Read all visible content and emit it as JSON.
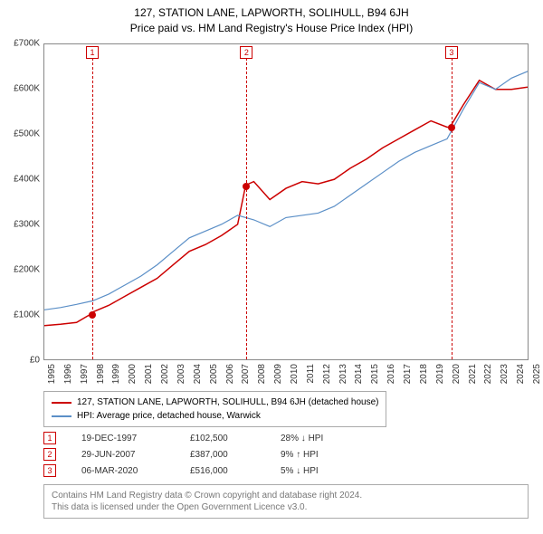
{
  "title": "127, STATION LANE, LAPWORTH, SOLIHULL, B94 6JH",
  "subtitle": "Price paid vs. HM Land Registry's House Price Index (HPI)",
  "chart": {
    "type": "line",
    "background_color": "#ffffff",
    "border_color": "#888888",
    "ylim": [
      0,
      700000
    ],
    "ytick_step": 100000,
    "ytick_labels": [
      "£0",
      "£100K",
      "£200K",
      "£300K",
      "£400K",
      "£500K",
      "£600K",
      "£700K"
    ],
    "xlim": [
      1995,
      2025
    ],
    "xtick_labels": [
      "1995",
      "1996",
      "1997",
      "1998",
      "1999",
      "2000",
      "2001",
      "2002",
      "2003",
      "2004",
      "2005",
      "2006",
      "2007",
      "2008",
      "2009",
      "2010",
      "2011",
      "2012",
      "2013",
      "2014",
      "2015",
      "2016",
      "2017",
      "2018",
      "2019",
      "2020",
      "2021",
      "2022",
      "2023",
      "2024",
      "2025"
    ],
    "series": [
      {
        "name": "127, STATION LANE, LAPWORTH, SOLIHULL, B94 6JH (detached house)",
        "color": "#cc0000",
        "line_width": 1.5,
        "points_year": [
          1995,
          1996,
          1997,
          1997.97,
          1998,
          1999,
          2000,
          2001,
          2002,
          2003,
          2004,
          2005,
          2006,
          2007,
          2007.5,
          2008,
          2009,
          2010,
          2011,
          2012,
          2013,
          2014,
          2015,
          2016,
          2017,
          2018,
          2019,
          2020,
          2020.18,
          2021,
          2022,
          2023,
          2024,
          2025
        ],
        "points_value": [
          75000,
          78000,
          82000,
          102500,
          105000,
          120000,
          140000,
          160000,
          180000,
          210000,
          240000,
          255000,
          275000,
          300000,
          387000,
          395000,
          355000,
          380000,
          395000,
          390000,
          400000,
          425000,
          445000,
          470000,
          490000,
          510000,
          530000,
          516000,
          516000,
          565000,
          620000,
          600000,
          600000,
          605000
        ]
      },
      {
        "name": "HPI: Average price, detached house, Warwick",
        "color": "#5b8fc7",
        "line_width": 1.2,
        "points_year": [
          1995,
          1996,
          1997,
          1998,
          1999,
          2000,
          2001,
          2002,
          2003,
          2004,
          2005,
          2006,
          2007,
          2008,
          2009,
          2010,
          2011,
          2012,
          2013,
          2014,
          2015,
          2016,
          2017,
          2018,
          2019,
          2020,
          2021,
          2022,
          2023,
          2024,
          2025
        ],
        "points_value": [
          110000,
          115000,
          122000,
          130000,
          145000,
          165000,
          185000,
          210000,
          240000,
          270000,
          285000,
          300000,
          320000,
          310000,
          295000,
          315000,
          320000,
          325000,
          340000,
          365000,
          390000,
          415000,
          440000,
          460000,
          475000,
          490000,
          555000,
          615000,
          600000,
          625000,
          640000
        ]
      }
    ],
    "events": [
      {
        "n": "1",
        "date": "19-DEC-1997",
        "year": 1997.97,
        "price": "£102,500",
        "delta": "28% ↓ HPI",
        "value": 102500
      },
      {
        "n": "2",
        "date": "29-JUN-2007",
        "year": 2007.5,
        "price": "£387,000",
        "delta": "9% ↑ HPI",
        "value": 387000
      },
      {
        "n": "3",
        "date": "06-MAR-2020",
        "year": 2020.18,
        "price": "£516,000",
        "delta": "5% ↓ HPI",
        "value": 516000
      }
    ]
  },
  "footer_line1": "Contains HM Land Registry data © Crown copyright and database right 2024.",
  "footer_line2": "This data is licensed under the Open Government Licence v3.0."
}
